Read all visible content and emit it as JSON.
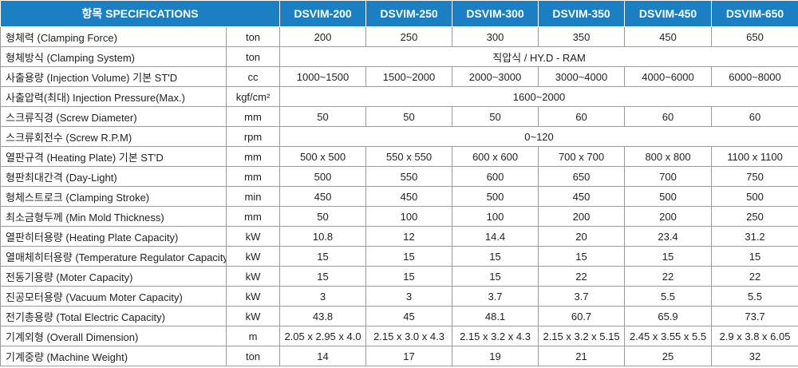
{
  "header": {
    "spec_label": "항목 SPECIFICATIONS",
    "models": [
      "DSVIM-200",
      "DSVIM-250",
      "DSVIM-300",
      "DSVIM-350",
      "DSVIM-450",
      "DSVIM-650"
    ]
  },
  "rows": [
    {
      "label": "형체력 (Clamping Force)",
      "unit": "ton",
      "values": [
        "200",
        "250",
        "300",
        "350",
        "450",
        "650"
      ]
    },
    {
      "label": "형체방식 (Clamping System)",
      "unit": "ton",
      "span": "직압식 / HY.D - RAM"
    },
    {
      "label": "사출용량 (Injection Volume) 기본 ST'D",
      "unit": "cc",
      "values": [
        "1000~1500",
        "1500~2000",
        "2000~3000",
        "3000~4000",
        "4000~6000",
        "6000~8000"
      ]
    },
    {
      "label": "사출압력(최대) Injection Pressure(Max.)",
      "unit": "kgf/cm²",
      "span": "1600~2000"
    },
    {
      "label": "스크류직경 (Screw Diameter)",
      "unit": "mm",
      "values": [
        "50",
        "50",
        "50",
        "60",
        "60",
        "60"
      ]
    },
    {
      "label": "스크류회전수 (Screw R.P.M)",
      "unit": "rpm",
      "span": "0~120"
    },
    {
      "label": "열판규격 (Heating Plate) 기본 ST'D",
      "unit": "mm",
      "values": [
        "500 x 500",
        "550 x 550",
        "600 x 600",
        "700 x 700",
        "800 x 800",
        "1100 x 1100"
      ]
    },
    {
      "label": "형판최대간격 (Day-Light)",
      "unit": "mm",
      "values": [
        "500",
        "550",
        "600",
        "650",
        "700",
        "750"
      ]
    },
    {
      "label": "형체스트로크 (Clamping Stroke)",
      "unit": "min",
      "values": [
        "450",
        "450",
        "500",
        "450",
        "500",
        "500"
      ]
    },
    {
      "label": "최소금형두께 (Min Mold Thickness)",
      "unit": "mm",
      "values": [
        "50",
        "100",
        "100",
        "200",
        "200",
        "250"
      ]
    },
    {
      "label": "열판히터용량 (Heating Plate Capacity)",
      "unit": "kW",
      "values": [
        "10.8",
        "12",
        "14.4",
        "20",
        "23.4",
        "31.2"
      ]
    },
    {
      "label": "열매체히터용량 (Temperature Regulator Capacity)",
      "unit": "kW",
      "values": [
        "15",
        "15",
        "15",
        "15",
        "15",
        "15"
      ]
    },
    {
      "label": "전동기용량 (Moter Capacity)",
      "unit": "kW",
      "values": [
        "15",
        "15",
        "15",
        "22",
        "22",
        "22"
      ]
    },
    {
      "label": "진공모터용량 (Vacuum Moter Capacity)",
      "unit": "kW",
      "values": [
        "3",
        "3",
        "3.7",
        "3.7",
        "5.5",
        "5.5"
      ]
    },
    {
      "label": "전기총용량 (Total Electric Capacity)",
      "unit": "kW",
      "values": [
        "43.8",
        "45",
        "48.1",
        "60.7",
        "65.9",
        "73.7"
      ]
    },
    {
      "label": "기계외형 (Overall Dimension)",
      "unit": "m",
      "values": [
        "2.05 x 2.95 x 4.0",
        "2.15 x 3.0 x 4.3",
        "2.15 x 3.2 x 4.3",
        "2.15 x 3.2 x 5.15",
        "2.45 x 3.55 x 5.5",
        "2.9 x 3.8 x 6.05"
      ]
    },
    {
      "label": "기계중량 (Machine Weight)",
      "unit": "ton",
      "values": [
        "14",
        "17",
        "19",
        "21",
        "25",
        "32"
      ]
    }
  ]
}
